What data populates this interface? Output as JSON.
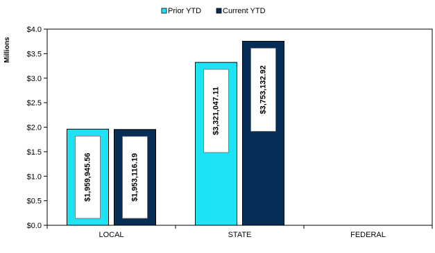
{
  "chart_data": {
    "type": "bar",
    "ylabel": "Millions",
    "categories": [
      "LOCAL",
      "STATE",
      "FEDERAL"
    ],
    "series": [
      {
        "name": "Prior YTD",
        "color": "#1ee3f5",
        "values": [
          1.95994556,
          3.32104711,
          0
        ],
        "labels": [
          "$1,959,945.56",
          "$3,321,047.11",
          ""
        ]
      },
      {
        "name": "Current YTD",
        "color": "#062d55",
        "values": [
          1.95311619,
          3.75313292,
          0
        ],
        "labels": [
          "$1,953,116.19",
          "$3,753,132.92",
          ""
        ]
      }
    ],
    "ylim": [
      0,
      4
    ],
    "yticks": [
      0,
      0.5,
      1,
      1.5,
      2,
      2.5,
      3,
      3.5,
      4
    ],
    "ytick_labels": [
      "$0.0",
      "$0.5",
      "$1.0",
      "$1.5",
      "$2.0",
      "$2.5",
      "$3.0",
      "$3.5",
      "$4.0"
    ],
    "legend_position": "top-center",
    "grid": false
  }
}
